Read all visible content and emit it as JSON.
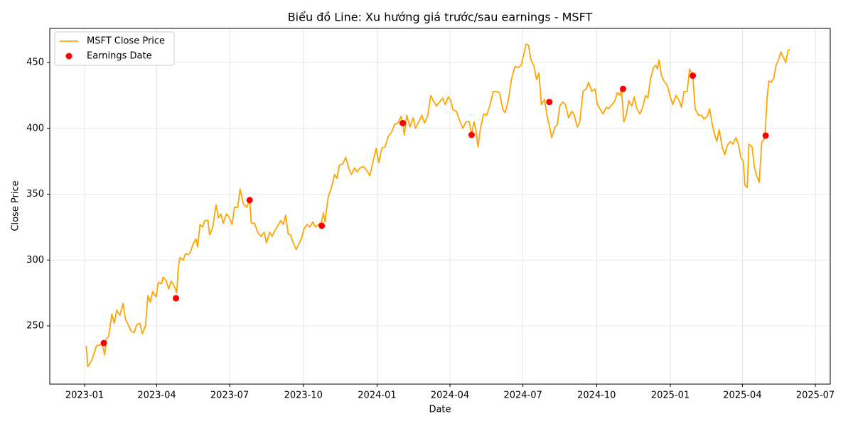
{
  "chart_data": {
    "type": "line",
    "title": "Biểu đồ Line: Xu hướng giá trước/sau earnings - MSFT",
    "xlabel": "Date",
    "ylabel": "Close Price",
    "xlim": [
      19314.5,
      20288.6
    ],
    "ylim": [
      205.8,
      475.9
    ],
    "xticks": [
      {
        "value": 19358,
        "label": "2023-01"
      },
      {
        "value": 19448,
        "label": "2023-04"
      },
      {
        "value": 19539,
        "label": "2023-07"
      },
      {
        "value": 19631,
        "label": "2023-10"
      },
      {
        "value": 19723,
        "label": "2024-01"
      },
      {
        "value": 19814,
        "label": "2024-04"
      },
      {
        "value": 19905,
        "label": "2024-07"
      },
      {
        "value": 19997,
        "label": "2024-10"
      },
      {
        "value": 20089,
        "label": "2025-01"
      },
      {
        "value": 20179,
        "label": "2025-04"
      },
      {
        "value": 20270,
        "label": "2025-07"
      }
    ],
    "yticks": [
      250,
      300,
      350,
      400,
      450
    ],
    "grid": true,
    "legend": "upper left",
    "series": [
      {
        "name": "MSFT Close Price",
        "color": "#ffa500",
        "type": "line",
        "x": [
          19360,
          19362,
          19367,
          19373,
          19380,
          19383,
          19385,
          19388,
          19392,
          19395,
          19398,
          19402,
          19406,
          19409,
          19413,
          19416,
          19420,
          19423,
          19427,
          19430,
          19434,
          19437,
          19440,
          19443,
          19447,
          19450,
          19454,
          19456,
          19460,
          19463,
          19466,
          19470,
          19473,
          19475,
          19477,
          19481,
          19484,
          19487,
          19490,
          19494,
          19497,
          19499,
          19502,
          19505,
          19508,
          19512,
          19514,
          19518,
          19522,
          19525,
          19528,
          19531,
          19535,
          19538,
          19542,
          19545,
          19549,
          19552,
          19556,
          19560,
          19564,
          19566,
          19570,
          19574,
          19578,
          19582,
          19585,
          19589,
          19592,
          19596,
          19599,
          19603,
          19606,
          19609,
          19612,
          19615,
          19619,
          19622,
          19626,
          19629,
          19632,
          19636,
          19639,
          19643,
          19646,
          19650,
          19654,
          19656,
          19658,
          19662,
          19666,
          19670,
          19673,
          19676,
          19680,
          19684,
          19688,
          19691,
          19695,
          19698,
          19702,
          19706,
          19710,
          19714,
          19718,
          19722,
          19725,
          19729,
          19733,
          19737,
          19741,
          19745,
          19749,
          19753,
          19755,
          19757,
          19760,
          19764,
          19768,
          19771,
          19775,
          19779,
          19782,
          19786,
          19790,
          19794,
          19797,
          19801,
          19805,
          19808,
          19812,
          19815,
          19818,
          19822,
          19826,
          19830,
          19834,
          19838,
          19841,
          19844,
          19846,
          19849,
          19852,
          19856,
          19860,
          19864,
          19868,
          19872,
          19876,
          19880,
          19883,
          19887,
          19891,
          19895,
          19899,
          19903,
          19906,
          19909,
          19912,
          19915,
          19919,
          19922,
          19925,
          19928,
          19932,
          19935,
          19938,
          19941,
          19945,
          19948,
          19951,
          19955,
          19958,
          19962,
          19966,
          19969,
          19973,
          19976,
          19980,
          19984,
          19987,
          19991,
          19995,
          19998,
          20002,
          20005,
          20009,
          20012,
          20016,
          20019,
          20023,
          20026,
          20028,
          20031,
          20034,
          20037,
          20041,
          20044,
          20047,
          20051,
          20054,
          20058,
          20061,
          20064,
          20068,
          20071,
          20073,
          20075,
          20078,
          20081,
          20085,
          20089,
          20092,
          20096,
          20100,
          20103,
          20106,
          20110,
          20113,
          20117,
          20120,
          20124,
          20128,
          20131,
          20135,
          20138,
          20141,
          20144,
          20147,
          20150,
          20154,
          20157,
          20160,
          20164,
          20167,
          20171,
          20174,
          20177,
          20180,
          20182,
          20185,
          20187,
          20191,
          20194,
          20197,
          20200,
          20203,
          20207,
          20210,
          20212,
          20215,
          20218,
          20221,
          20224,
          20227,
          20230,
          20233,
          20236,
          20238
        ],
        "values": [
          235,
          219,
          224,
          235,
          236,
          228,
          240,
          242,
          259,
          252,
          262,
          258,
          267,
          255,
          250,
          246,
          245,
          251,
          252,
          244,
          250,
          273,
          268,
          276,
          272,
          283,
          282,
          287,
          284,
          278,
          284,
          280,
          275,
          295,
          302,
          300,
          305,
          304,
          306,
          313,
          316,
          310,
          327,
          325,
          330,
          330,
          319,
          325,
          342,
          332,
          335,
          328,
          335,
          333,
          327,
          340,
          340,
          354,
          343,
          340,
          345,
          328,
          328,
          321,
          318,
          321,
          313,
          321,
          318,
          323,
          326,
          330,
          327,
          334,
          320,
          319,
          312,
          308,
          313,
          317,
          324,
          327,
          325,
          329,
          325,
          327,
          329,
          336,
          329,
          348,
          355,
          365,
          362,
          372,
          373,
          378,
          369,
          365,
          370,
          367,
          370,
          371,
          368,
          364,
          375,
          385,
          374,
          385,
          386,
          394,
          397,
          403,
          404,
          409,
          404,
          395,
          410,
          401,
          408,
          400,
          405,
          410,
          404,
          409,
          425,
          420,
          417,
          420,
          423,
          418,
          424,
          421,
          414,
          413,
          406,
          400,
          405,
          405,
          395,
          405,
          400,
          386,
          400,
          411,
          410,
          418,
          428,
          428,
          427,
          414,
          412,
          422,
          438,
          447,
          446,
          448,
          456,
          464,
          463,
          452,
          447,
          437,
          442,
          418,
          422,
          410,
          402,
          393,
          401,
          403,
          417,
          420,
          418,
          408,
          413,
          410,
          401,
          405,
          428,
          430,
          435,
          428,
          430,
          418,
          414,
          411,
          416,
          415,
          418,
          420,
          427,
          425,
          430,
          405,
          410,
          421,
          417,
          424,
          415,
          411,
          415,
          425,
          423,
          437,
          446,
          448,
          445,
          452,
          440,
          436,
          433,
          424,
          418,
          425,
          421,
          416,
          428,
          428,
          445,
          440,
          415,
          410,
          410,
          407,
          409,
          415,
          404,
          396,
          390,
          399,
          385,
          380,
          387,
          390,
          388,
          393,
          388,
          378,
          375,
          357,
          355,
          388,
          386,
          370,
          364,
          359,
          389,
          393,
          425,
          436,
          435,
          438,
          448,
          452,
          458,
          454,
          450,
          459,
          460
        ]
      },
      {
        "name": "Earnings Date",
        "color": "#ff0000",
        "type": "scatter",
        "x": [
          19382,
          19472,
          19564,
          19654,
          19755,
          19841,
          19938,
          20030,
          20117,
          20208
        ],
        "values": [
          237,
          271,
          345.5,
          326,
          404,
          395,
          420,
          430,
          440,
          394.5
        ]
      }
    ]
  }
}
